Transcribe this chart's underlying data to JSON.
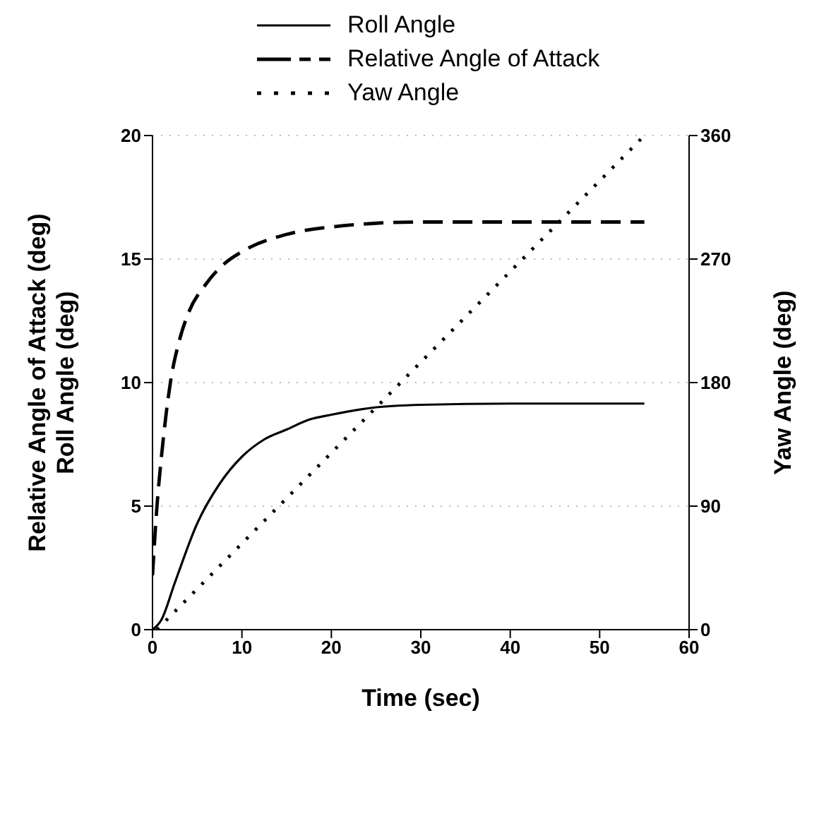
{
  "chart_data": {
    "type": "line",
    "xlabel": "Time (sec)",
    "ylabel": "Relative Angle of Attack (deg)\nRoll Angle (deg)",
    "y2label": "Yaw Angle (deg)",
    "xlim": [
      0,
      60
    ],
    "xticks": [
      0,
      10,
      20,
      30,
      40,
      50,
      60
    ],
    "ylim": [
      0,
      20
    ],
    "yticks": [
      0,
      5,
      10,
      15,
      20
    ],
    "y2lim": [
      0,
      360
    ],
    "y2ticks": [
      0,
      90,
      180,
      270,
      360
    ],
    "grid": true,
    "legend": "top",
    "series": [
      {
        "name": "Roll Angle",
        "color": "#000000",
        "line_style": "solid",
        "x": [
          0,
          1,
          2.5,
          5,
          7.5,
          10,
          12.5,
          15,
          17.5,
          20,
          25,
          30,
          40,
          55
        ],
        "values": [
          0,
          0.4,
          1.9,
          4.3,
          5.9,
          7.0,
          7.7,
          8.1,
          8.5,
          8.7,
          9.0,
          9.1,
          9.15,
          9.15
        ]
      },
      {
        "name": "Relative Angle of Attack",
        "color": "#000000",
        "line_style": "dashed",
        "x": [
          0,
          0.5,
          1,
          2,
          3,
          4,
          6,
          8,
          10,
          15,
          20,
          25,
          30,
          40,
          55
        ],
        "values": [
          2.2,
          5,
          7,
          10,
          11.7,
          12.8,
          14,
          14.8,
          15.3,
          16,
          16.3,
          16.45,
          16.5,
          16.5,
          16.5
        ]
      },
      {
        "name": "Yaw Angle",
        "color": "#000000",
        "line_style": "dotted",
        "axis": "y2",
        "x": [
          0.5,
          55
        ],
        "values": [
          0,
          360
        ]
      }
    ]
  }
}
